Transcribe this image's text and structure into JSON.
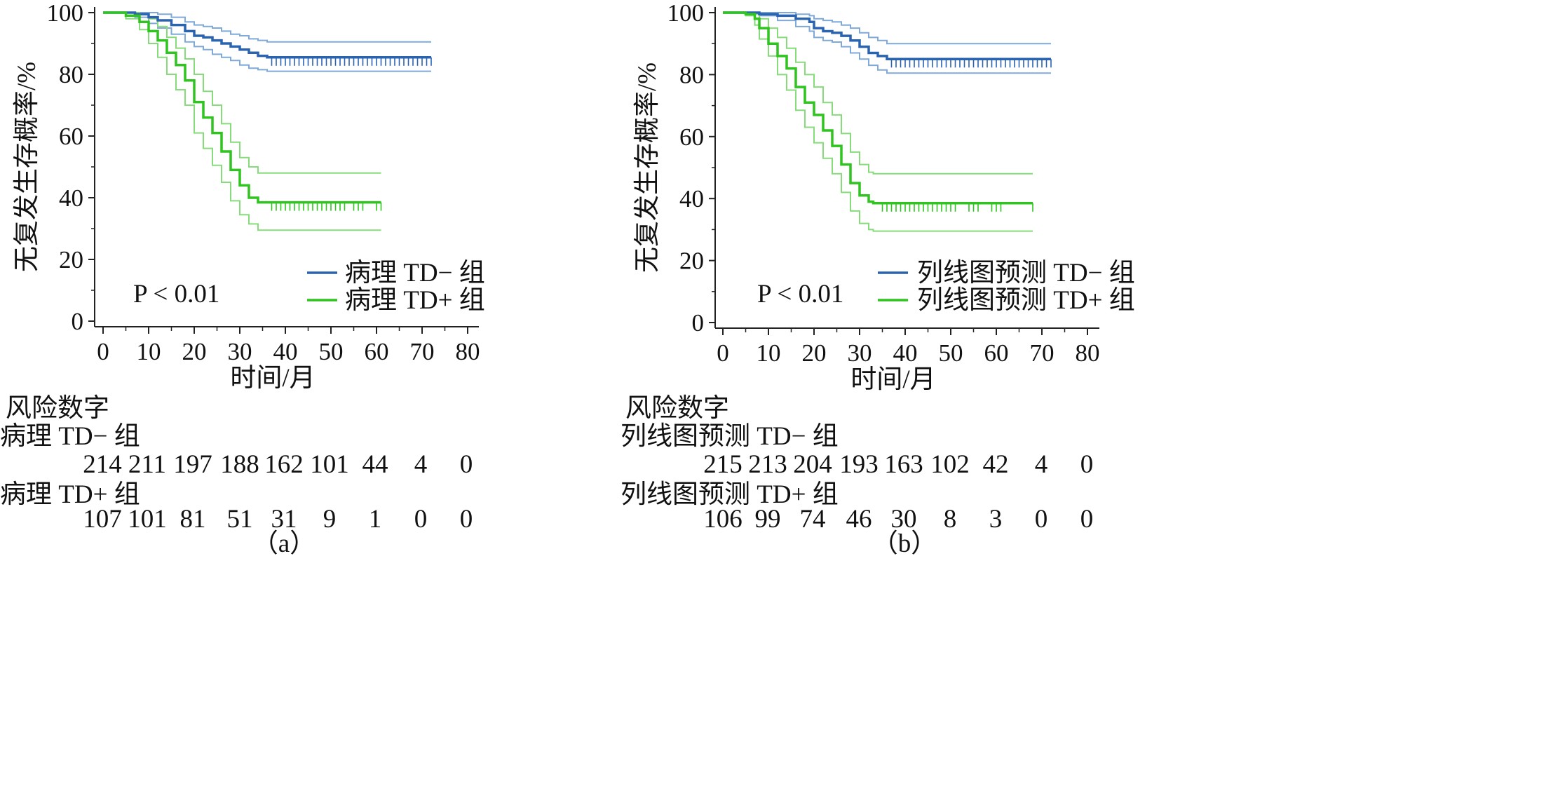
{
  "chart_data": [
    {
      "type": "line",
      "panel_label": "（a）",
      "xlabel": "时间/月",
      "ylabel": "无复发生存概率/%",
      "x_ticks": [
        0,
        10,
        20,
        30,
        40,
        50,
        60,
        70,
        80
      ],
      "y_ticks": [
        0,
        20,
        40,
        60,
        80,
        100
      ],
      "xlim": [
        0,
        80
      ],
      "ylim": [
        0,
        100
      ],
      "annotation": "P < 0.01",
      "legend_position": "bottom-right",
      "series": [
        {
          "name": "病理 TD− 组",
          "color": "#2a63b0",
          "band_color": "#7fa9d8",
          "x": [
            0,
            7,
            10,
            12,
            15,
            18,
            20,
            22,
            24,
            26,
            28,
            30,
            32,
            34,
            36,
            72
          ],
          "y": [
            100,
            99.5,
            98.5,
            97.5,
            96,
            94,
            92.5,
            92,
            91,
            90,
            89,
            88,
            87,
            86,
            85.5,
            85.5
          ],
          "upper": [
            100,
            100,
            100,
            99.5,
            98.5,
            97,
            96,
            95.5,
            95,
            94,
            93,
            92.5,
            91.5,
            91,
            90.5,
            90.5
          ],
          "lower": [
            100,
            98.5,
            96.5,
            95,
            93,
            90.5,
            89,
            88,
            86.5,
            85.5,
            84.5,
            83,
            82,
            81.5,
            81,
            81
          ],
          "censor_x": [
            37,
            38,
            39,
            40,
            41,
            42,
            43,
            44,
            45,
            46,
            47,
            48,
            49,
            50,
            51,
            52,
            53,
            54,
            55,
            56,
            57,
            58,
            59,
            60,
            61,
            62,
            63,
            64,
            65,
            66,
            67,
            68,
            69,
            70,
            71,
            72
          ]
        },
        {
          "name": "病理 TD+ 组",
          "color": "#2fc41f",
          "band_color": "#86dc7a",
          "x": [
            0,
            5,
            8,
            10,
            12,
            14,
            16,
            18,
            20,
            22,
            24,
            26,
            28,
            30,
            32,
            34,
            36,
            61
          ],
          "y": [
            100,
            99,
            97,
            94,
            91,
            87,
            83,
            78,
            71,
            66,
            61,
            55,
            49,
            44,
            40,
            38.5,
            38.5,
            38.5
          ],
          "upper": [
            100,
            100,
            99.5,
            98,
            95.5,
            92,
            88.5,
            85,
            80,
            74.5,
            70,
            64,
            58,
            53,
            50,
            48,
            48,
            48
          ],
          "lower": [
            100,
            98,
            94.5,
            90,
            85.5,
            80,
            75,
            70,
            61,
            56,
            50.5,
            45,
            39,
            34.5,
            31.5,
            29.5,
            29.5,
            29.5
          ],
          "censor_x": [
            37,
            38,
            39,
            40,
            41,
            42,
            43,
            44,
            45,
            46,
            47,
            48,
            49,
            50,
            51,
            52,
            53,
            55,
            56,
            57,
            60,
            61
          ]
        }
      ],
      "risk_table": {
        "title": "风险数字",
        "rows": [
          {
            "label": "病理 TD− 组",
            "values": [
              214,
              211,
              197,
              188,
              162,
              101,
              44,
              4,
              0
            ]
          },
          {
            "label": "病理 TD+ 组",
            "values": [
              107,
              101,
              81,
              51,
              31,
              9,
              1,
              0,
              0
            ]
          }
        ]
      }
    },
    {
      "type": "line",
      "panel_label": "（b）",
      "xlabel": "时间/月",
      "ylabel": "无复发生存概率/%",
      "x_ticks": [
        0,
        10,
        20,
        30,
        40,
        50,
        60,
        70,
        80
      ],
      "y_ticks": [
        0,
        20,
        40,
        60,
        80,
        100
      ],
      "xlim": [
        0,
        80
      ],
      "ylim": [
        0,
        100
      ],
      "annotation": "P < 0.01",
      "legend_position": "bottom-right",
      "series": [
        {
          "name": "列线图预测 TD− 组",
          "color": "#2a63b0",
          "band_color": "#7fa9d8",
          "x": [
            0,
            8,
            12,
            16,
            19,
            20,
            22,
            24,
            26,
            28,
            30,
            32,
            34,
            36,
            72
          ],
          "y": [
            100,
            99.5,
            99,
            98,
            97,
            95,
            94,
            93.5,
            92.5,
            91,
            89,
            87,
            86,
            85,
            85
          ],
          "upper": [
            100,
            100,
            100,
            99.5,
            99,
            98,
            97.5,
            97,
            96,
            95,
            93.5,
            92,
            91,
            90,
            90
          ],
          "lower": [
            100,
            99,
            97.5,
            95.5,
            94,
            92,
            91,
            90.5,
            89,
            87,
            85,
            83,
            81.5,
            80.5,
            80.5
          ],
          "censor_x": [
            37,
            38,
            39,
            40,
            41,
            42,
            43,
            44,
            45,
            46,
            47,
            48,
            49,
            50,
            51,
            52,
            53,
            54,
            55,
            56,
            57,
            58,
            59,
            60,
            61,
            62,
            63,
            64,
            65,
            66,
            67,
            68,
            69,
            70,
            71,
            72
          ]
        },
        {
          "name": "列线图预测 TD+ 组",
          "color": "#2fc41f",
          "band_color": "#86dc7a",
          "x": [
            0,
            5,
            7,
            8,
            10,
            12,
            14,
            16,
            18,
            20,
            22,
            24,
            26,
            28,
            30,
            32,
            33,
            68
          ],
          "y": [
            100,
            99.5,
            98,
            95,
            90,
            86,
            82,
            76,
            71,
            67,
            62,
            57,
            51,
            45,
            41,
            39,
            38.5,
            38.5
          ],
          "upper": [
            100,
            100,
            99.5,
            98,
            95,
            92,
            88.5,
            84,
            80,
            76,
            71,
            67,
            61,
            55,
            51,
            48.5,
            48,
            48
          ],
          "lower": [
            100,
            99,
            96,
            91.5,
            86,
            80,
            75,
            68.5,
            63,
            58,
            53,
            48,
            42,
            36,
            32,
            30,
            29.5,
            29.5
          ],
          "censor_x": [
            35,
            36,
            37,
            38,
            39,
            40,
            41,
            42,
            43,
            44,
            45,
            46,
            47,
            48,
            49,
            50,
            51,
            54,
            55,
            56,
            59,
            60,
            61,
            68
          ]
        }
      ],
      "risk_table": {
        "title": "风险数字",
        "rows": [
          {
            "label": "列线图预测 TD− 组",
            "values": [
              215,
              213,
              204,
              193,
              163,
              102,
              42,
              4,
              0
            ]
          },
          {
            "label": "列线图预测 TD+ 组",
            "values": [
              106,
              99,
              74,
              46,
              30,
              8,
              3,
              0,
              0
            ]
          }
        ]
      }
    }
  ]
}
